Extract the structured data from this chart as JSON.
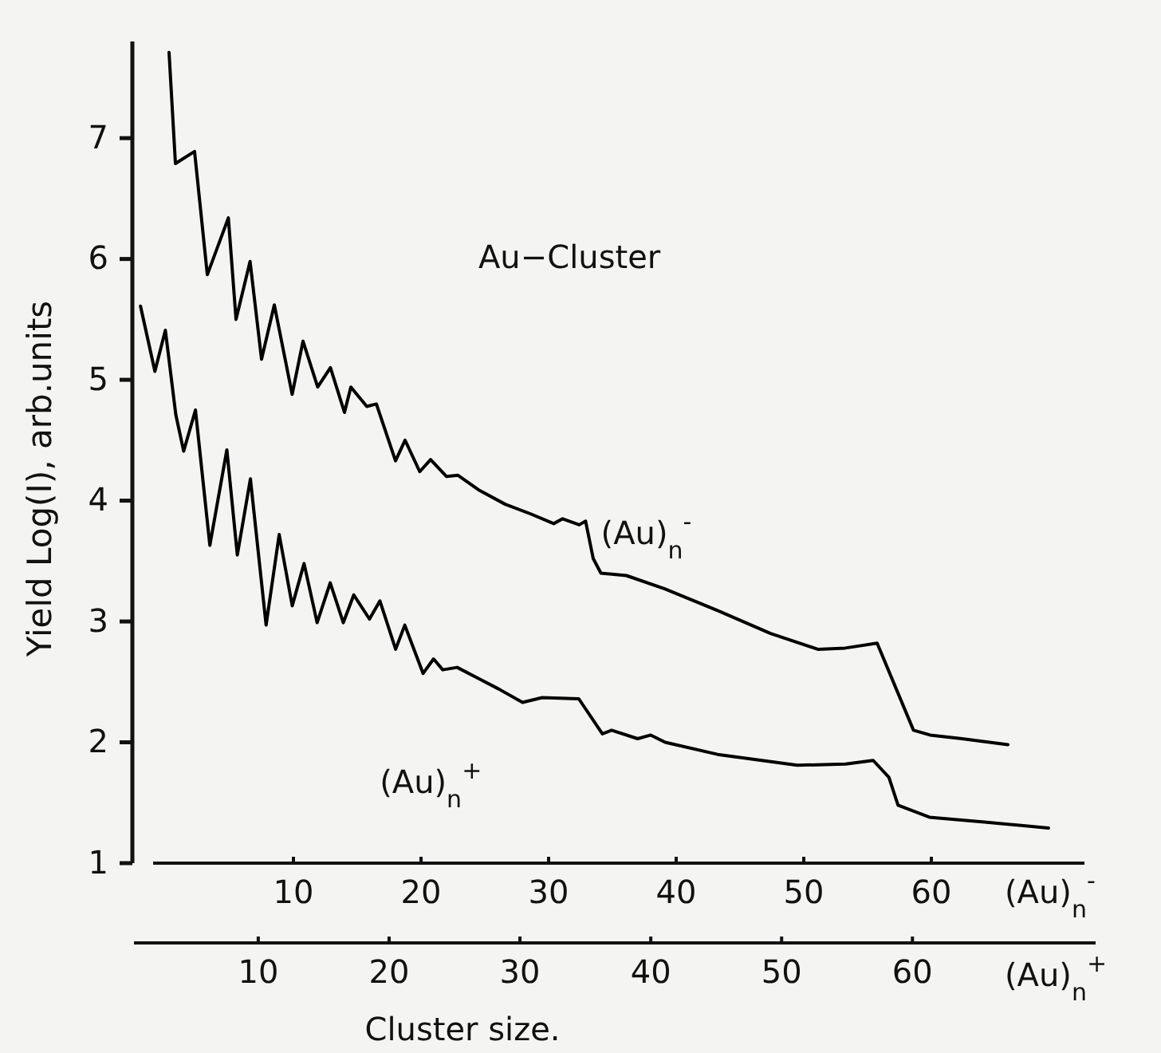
{
  "chart_data": {
    "type": "line",
    "ylabel": "Yield Log(I), arb.units",
    "xlabel": "(Au)$_{n}$$^{-}$",
    "x2label": "(Au)$_{n}$$^{+}$",
    "xlim": [
      -1,
      72
    ],
    "xticks": [
      10,
      20,
      30,
      40,
      50,
      60
    ],
    "x2lim": [
      0.5,
      74
    ],
    "x2ticks": [
      10,
      20,
      30,
      40,
      50,
      60
    ],
    "ylim": [
      1,
      7.8
    ],
    "yticks": [
      1,
      2,
      3,
      4,
      5,
      6,
      7
    ],
    "annotations": [
      "Au−Cluster",
      "Cluster size."
    ],
    "series": [
      {
        "name": "(Au)$_{n}$$^{-}$",
        "color": "#000000",
        "x": [
          0.25,
          0.75,
          2.25,
          3.25,
          4.9,
          5.5,
          6.6,
          7.5,
          8.5,
          9.9,
          10.75,
          11.9,
          12.9,
          14.0,
          14.5,
          15.75,
          16.5,
          18.0,
          18.75,
          19.9,
          20.75,
          22.0,
          22.9,
          24.5,
          26.6,
          28.6,
          30.4,
          31.1,
          32.4,
          32.9,
          33.5,
          34.1,
          36.1,
          39.1,
          43.25,
          47.4,
          51.1,
          53.25,
          55.75,
          58.6,
          59.9,
          62.4,
          66.0
        ],
        "values": [
          7.71,
          6.79,
          6.89,
          5.87,
          6.34,
          5.5,
          5.98,
          5.17,
          5.62,
          4.88,
          5.32,
          4.94,
          5.1,
          4.73,
          4.94,
          4.78,
          4.8,
          4.33,
          4.5,
          4.24,
          4.34,
          4.2,
          4.21,
          4.09,
          3.97,
          3.89,
          3.81,
          3.85,
          3.8,
          3.83,
          3.52,
          3.4,
          3.38,
          3.27,
          3.09,
          2.9,
          2.77,
          2.78,
          2.82,
          2.1,
          2.06,
          2.03,
          1.98
        ]
      },
      {
        "name": "(Au)$_{n}$$^{+}$",
        "color": "#000000",
        "axis": "x2",
        "x": [
          1.0,
          2.1,
          2.9,
          3.7,
          4.3,
          5.2,
          6.3,
          7.6,
          8.4,
          9.4,
          10.6,
          11.6,
          12.6,
          13.5,
          14.5,
          15.5,
          16.5,
          17.3,
          18.5,
          19.3,
          20.5,
          21.2,
          22.6,
          23.4,
          24.1,
          25.2,
          26.8,
          28.4,
          30.2,
          31.7,
          34.5,
          36.3,
          37.0,
          39.0,
          40.0,
          41.1,
          45.1,
          51.2,
          54.9,
          57.0,
          58.2,
          58.9,
          61.3,
          65.5,
          70.4
        ],
        "values": [
          5.61,
          5.07,
          5.41,
          4.71,
          4.41,
          4.75,
          3.63,
          4.42,
          3.55,
          4.18,
          2.97,
          3.72,
          3.13,
          3.48,
          2.99,
          3.32,
          2.99,
          3.22,
          3.02,
          3.17,
          2.77,
          2.97,
          2.57,
          2.69,
          2.6,
          2.62,
          2.53,
          2.44,
          2.33,
          2.37,
          2.36,
          2.07,
          2.1,
          2.03,
          2.06,
          2.0,
          1.9,
          1.81,
          1.82,
          1.85,
          1.71,
          1.48,
          1.38,
          1.34,
          1.29
        ]
      }
    ]
  }
}
